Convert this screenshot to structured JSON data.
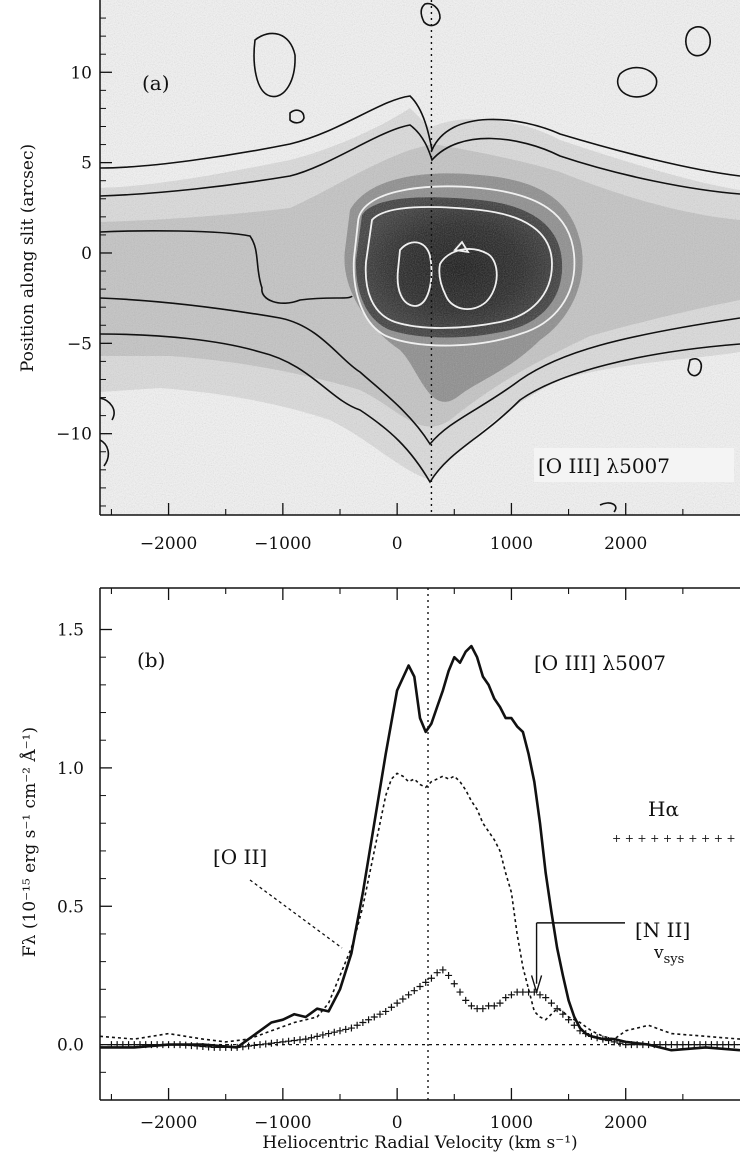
{
  "chart_data": [
    {
      "type": "heatmap",
      "panel_label": "(a)",
      "annotation": "[O III] λ5007",
      "xlim": [
        -2600,
        3000
      ],
      "ylim": [
        -14.5,
        14
      ],
      "ylabel": "Position along slit (arcsec)",
      "xticks": [
        -2000,
        -1000,
        0,
        1000,
        2000
      ],
      "xtick_labels": [
        "−2000",
        "−1000",
        "0",
        "1000",
        "2000"
      ],
      "yticks": [
        10,
        5,
        0,
        -5,
        -10
      ],
      "ytick_labels": [
        "10",
        "5",
        "0",
        "−5",
        "−10"
      ],
      "systemic_velocity_line": 300,
      "emission_core": {
        "velocity_range": [
          -500,
          1700
        ],
        "position_range": [
          -5,
          4
        ],
        "peak_knots_velocity": [
          150,
          650
        ]
      },
      "colors": {
        "contour_outer": "#111111",
        "contour_inner": "#f0f0f0",
        "gray_light": "#d3d3d3",
        "gray_dark": "#1a1a1a"
      }
    },
    {
      "type": "line",
      "panel_label": "(b)",
      "annotation": "[O III] λ5007",
      "xlabel": "Heliocentric Radial Velocity (km s⁻¹)",
      "ylabel": "Fλ (10⁻¹⁵ erg s⁻¹ cm⁻² Å⁻¹)",
      "xlim": [
        -2600,
        3000
      ],
      "ylim": [
        -0.2,
        1.65
      ],
      "xticks": [
        -2000,
        -1000,
        0,
        1000,
        2000
      ],
      "xtick_labels": [
        "−2000",
        "−1000",
        "0",
        "1000",
        "2000"
      ],
      "yticks": [
        0.0,
        0.5,
        1.0,
        1.5
      ],
      "ytick_labels": [
        "0.0",
        "0.5",
        "1.0",
        "1.5"
      ],
      "systemic_velocity_line": 270,
      "labels": {
        "o2": "[O II]",
        "n2": "[N II]",
        "ha": "Hα",
        "vsys": "v",
        "vsys_sub": "sys"
      },
      "vsys_arrow_velocity": 1220,
      "series": [
        {
          "name": "[O III] λ5007",
          "style": "solid",
          "x": [
            -2600,
            -2300,
            -2000,
            -1700,
            -1400,
            -1300,
            -1200,
            -1100,
            -1000,
            -900,
            -800,
            -700,
            -600,
            -500,
            -400,
            -300,
            -200,
            -100,
            0,
            100,
            150,
            200,
            250,
            300,
            350,
            400,
            450,
            500,
            550,
            600,
            650,
            700,
            750,
            800,
            850,
            900,
            950,
            1000,
            1050,
            1100,
            1150,
            1200,
            1250,
            1300,
            1350,
            1400,
            1450,
            1500,
            1550,
            1600,
            1650,
            1700,
            1800,
            1900,
            2000,
            2200,
            2400,
            2700,
            3000
          ],
          "y": [
            -0.01,
            -0.01,
            0.0,
            0.0,
            -0.01,
            0.02,
            0.05,
            0.08,
            0.09,
            0.11,
            0.1,
            0.13,
            0.12,
            0.2,
            0.33,
            0.55,
            0.8,
            1.05,
            1.28,
            1.37,
            1.33,
            1.18,
            1.13,
            1.16,
            1.22,
            1.28,
            1.35,
            1.4,
            1.38,
            1.42,
            1.44,
            1.4,
            1.33,
            1.3,
            1.25,
            1.22,
            1.18,
            1.18,
            1.15,
            1.13,
            1.05,
            0.95,
            0.8,
            0.62,
            0.48,
            0.35,
            0.25,
            0.16,
            0.1,
            0.06,
            0.04,
            0.03,
            0.02,
            0.02,
            0.01,
            0.0,
            -0.02,
            -0.01,
            -0.02
          ]
        },
        {
          "name": "[O II]",
          "style": "dotted",
          "x": [
            -2600,
            -2300,
            -2000,
            -1700,
            -1500,
            -1300,
            -1100,
            -900,
            -700,
            -600,
            -500,
            -400,
            -350,
            -300,
            -250,
            -200,
            -150,
            -100,
            -50,
            0,
            50,
            100,
            150,
            200,
            250,
            300,
            350,
            400,
            450,
            500,
            550,
            600,
            650,
            700,
            750,
            800,
            850,
            900,
            950,
            1000,
            1050,
            1100,
            1150,
            1200,
            1250,
            1300,
            1350,
            1400,
            1450,
            1500,
            1600,
            1700,
            1800,
            1900,
            2000,
            2200,
            2400,
            2700,
            3000
          ],
          "y": [
            0.03,
            0.02,
            0.04,
            0.02,
            0.01,
            0.02,
            0.05,
            0.08,
            0.1,
            0.15,
            0.25,
            0.35,
            0.42,
            0.5,
            0.6,
            0.7,
            0.8,
            0.9,
            0.96,
            0.98,
            0.97,
            0.95,
            0.96,
            0.94,
            0.93,
            0.95,
            0.96,
            0.97,
            0.96,
            0.97,
            0.95,
            0.92,
            0.88,
            0.85,
            0.8,
            0.77,
            0.74,
            0.7,
            0.62,
            0.55,
            0.4,
            0.28,
            0.2,
            0.12,
            0.1,
            0.09,
            0.11,
            0.13,
            0.12,
            0.1,
            0.08,
            0.05,
            0.03,
            0.02,
            0.05,
            0.07,
            0.04,
            0.03,
            0.02
          ]
        },
        {
          "name": "Hα + [N II]",
          "style": "plus",
          "x": [
            -2500,
            -2200,
            -1900,
            -1600,
            -1400,
            -1200,
            -1000,
            -800,
            -600,
            -500,
            -400,
            -300,
            -200,
            -100,
            0,
            100,
            200,
            300,
            350,
            400,
            450,
            500,
            550,
            600,
            650,
            700,
            750,
            800,
            850,
            900,
            950,
            1000,
            1050,
            1100,
            1150,
            1200,
            1250,
            1300,
            1350,
            1400,
            1450,
            1500,
            1550,
            1600,
            1700,
            1800,
            1900,
            2000,
            2200,
            2500,
            2800,
            3000
          ],
          "y": [
            0.0,
            0.0,
            0.0,
            -0.01,
            -0.01,
            0.0,
            0.01,
            0.02,
            0.04,
            0.05,
            0.06,
            0.08,
            0.1,
            0.12,
            0.15,
            0.18,
            0.21,
            0.24,
            0.26,
            0.27,
            0.25,
            0.22,
            0.19,
            0.16,
            0.14,
            0.13,
            0.13,
            0.14,
            0.14,
            0.15,
            0.17,
            0.18,
            0.19,
            0.19,
            0.19,
            0.19,
            0.18,
            0.17,
            0.15,
            0.13,
            0.11,
            0.09,
            0.07,
            0.05,
            0.03,
            0.02,
            0.01,
            0.0,
            0.0,
            0.0,
            0.0,
            0.0
          ]
        },
        {
          "name": "zero",
          "style": "dotted-flat",
          "x": [
            -2600,
            3000
          ],
          "y": [
            0,
            0
          ]
        }
      ]
    }
  ]
}
